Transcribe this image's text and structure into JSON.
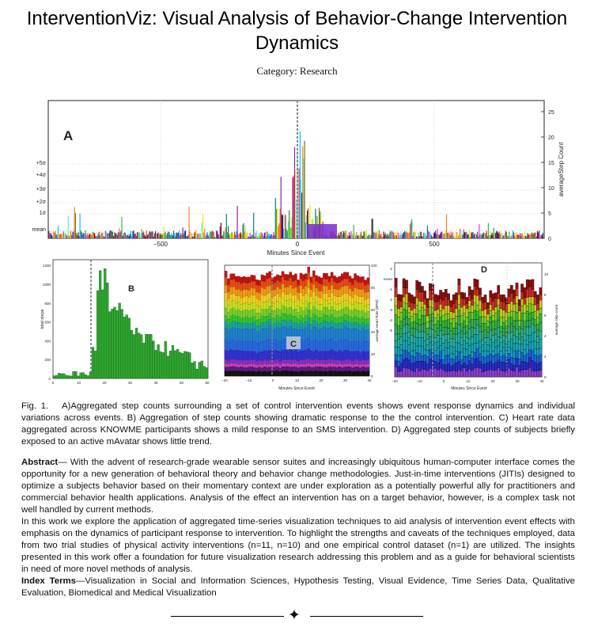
{
  "header": {
    "title": "InterventionViz: Visual Analysis of Behavior-Change Intervention Dynamics",
    "category": "Category: Research"
  },
  "figure": {
    "panel_a": {
      "label": "A",
      "xlabel": "Minutes Since Event",
      "ylabel_right": "averageStep Count",
      "xticks": [
        "−500",
        "0",
        "500"
      ],
      "yticks_right": [
        "0",
        "5",
        "10",
        "15",
        "20",
        "25"
      ],
      "sigma_labels": [
        "mean",
        "1σ",
        "+2σ",
        "+3σ",
        "+4σ",
        "+5σ"
      ]
    },
    "panel_b": {
      "label": "B",
      "ylabel": "total steps",
      "yticks": [
        "0",
        "200",
        "400",
        "600",
        "800",
        "1000",
        "1200"
      ],
      "xticks": [
        "0",
        "10",
        "20",
        "30",
        "40",
        "50",
        "60"
      ],
      "colors": {
        "bar": "#2ea82e",
        "edge": "#0e4f0e"
      }
    },
    "panel_c": {
      "label": "C",
      "xlabel": "Minutes Since Event",
      "ylabel_right": "average Heart Rate (BPM)",
      "xticks": [
        "−20",
        "−10",
        "0",
        "10",
        "20",
        "30",
        "40"
      ],
      "yticks_right": [
        "0",
        "20",
        "40",
        "60",
        "80",
        "100"
      ]
    },
    "panel_d": {
      "label": "D",
      "xlabel": "Minutes Since Event",
      "ylabel_right": "average step count",
      "xticks": [
        "−20",
        "−10",
        "0",
        "10",
        "20",
        "30",
        "40"
      ],
      "yticks_right": [
        "0",
        "2",
        "4",
        "6",
        "8",
        "10"
      ],
      "left_labels": [
        "-2",
        "mean",
        "-1",
        "-2",
        "-3",
        "-4",
        "-5"
      ]
    }
  },
  "caption": {
    "lead": "Fig. 1.",
    "text": "A)Aggregated step counts surrounding a set of control intervention events shows event response dynamics and individual variations across events. B) Aggregation of step counts showing dramatic response to the the control intervention. C) Heart rate data aggregated across KNOWME participants shows a mild response to an SMS intervention. D) Aggregated step counts of subjects briefly exposed to an active mAvatar shows little trend."
  },
  "abstract": {
    "lead": "Abstract",
    "p1": "— With the advent of research-grade wearable sensor suites and increasingly ubiquitous human-computer interface comes the opportunity for a new generation of behavioral theory and behavior change methodologies.  Just-in-time interventions (JITIs) designed to optimize a subjects behavior based on their momentary context are under exploration as a potentially powerful ally for practitioners and commercial behavior health applications.  Analysis of the effect an intervention has on a target behavior, however, is a complex task not well handled by current methods.",
    "p2": "In this work we explore the application of aggregated time-series visualization techniques to aid analysis of intervention event effects with emphasis on the dynamics of participant response to intervention.  To highlight the strengths and caveats of the techniques employed, data from two trial studies of physical activity interventions (n=11, n=10) and one empirical control dataset (n=1) are utilized.  The insights presented in this work offer a foundation for future visualization research addressing this problem and as a guide for behavioral scientists in need of more novel methods of analysis."
  },
  "index_terms": {
    "lead": "Index Terms",
    "text": "—Visualization in Social and Information Sciences, Hypothesis Testing, Visual Evidence, Time Series Data, Qualitative Evaluation, Biomedical and Medical Visualization"
  },
  "footer": {
    "ornament": "✦"
  }
}
